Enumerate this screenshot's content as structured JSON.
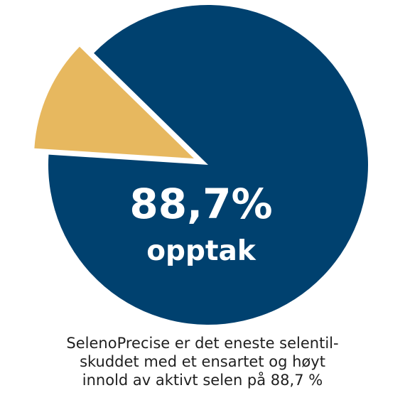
{
  "chart_data": {
    "type": "pie",
    "categories": [
      "opptak",
      ""
    ],
    "values": [
      88.7,
      11.3
    ],
    "colors": [
      "#00416f",
      "#e7b85f"
    ],
    "exploded_slice_index": 1,
    "center_value": "88,7%",
    "center_label": "opptak"
  },
  "caption": {
    "line_1": "SelenoPrecise er det eneste selentil-",
    "line_2": "skuddet med et ensartet og høyt",
    "line_3": "innold av aktivt selen på 88,7 %"
  }
}
